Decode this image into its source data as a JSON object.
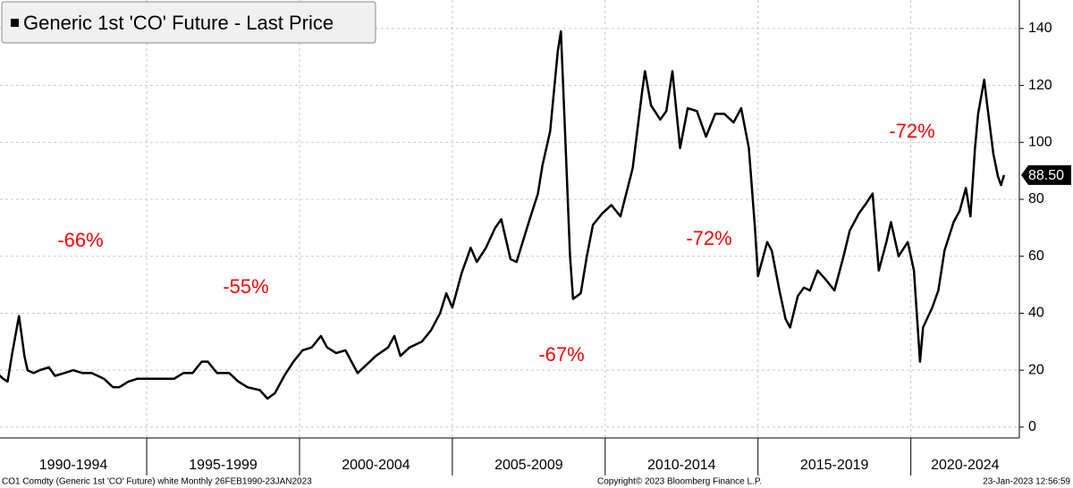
{
  "chart_data": {
    "type": "line",
    "title": "Generic 1st 'CO' Future - Last Price",
    "x": [
      1990.1,
      1990.3,
      1990.45,
      1990.6,
      1990.82,
      1990.9,
      1991.0,
      1991.1,
      1991.3,
      1991.5,
      1991.8,
      1992.0,
      1992.3,
      1992.6,
      1992.9,
      1993.2,
      1993.6,
      1993.9,
      1994.1,
      1994.4,
      1994.7,
      1995.0,
      1995.5,
      1995.9,
      1996.2,
      1996.5,
      1996.8,
      1997.0,
      1997.3,
      1997.7,
      1998.0,
      1998.3,
      1998.7,
      1998.95,
      1999.2,
      1999.5,
      1999.8,
      2000.1,
      2000.4,
      2000.7,
      2000.9,
      2001.2,
      2001.5,
      2001.9,
      2002.2,
      2002.5,
      2002.9,
      2003.1,
      2003.3,
      2003.6,
      2004.0,
      2004.3,
      2004.6,
      2004.8,
      2005.0,
      2005.3,
      2005.6,
      2005.8,
      2006.1,
      2006.4,
      2006.6,
      2006.9,
      2007.1,
      2007.5,
      2007.8,
      2007.95,
      2008.2,
      2008.45,
      2008.55,
      2008.7,
      2008.85,
      2008.95,
      2009.2,
      2009.4,
      2009.6,
      2009.9,
      2010.2,
      2010.5,
      2010.9,
      2011.2,
      2011.3,
      2011.5,
      2011.8,
      2012.0,
      2012.2,
      2012.45,
      2012.7,
      2013.0,
      2013.3,
      2013.6,
      2013.9,
      2014.2,
      2014.45,
      2014.7,
      2014.9,
      2015.0,
      2015.3,
      2015.45,
      2015.7,
      2015.9,
      2016.05,
      2016.3,
      2016.5,
      2016.7,
      2016.95,
      2017.2,
      2017.5,
      2017.8,
      2018.0,
      2018.3,
      2018.5,
      2018.75,
      2018.95,
      2019.2,
      2019.35,
      2019.6,
      2019.9,
      2020.1,
      2020.3,
      2020.4,
      2020.7,
      2020.9,
      2021.1,
      2021.4,
      2021.6,
      2021.8,
      2021.95,
      2022.1,
      2022.2,
      2022.4,
      2022.5,
      2022.7,
      2022.85,
      2022.95,
      2023.05
    ],
    "series": [
      {
        "name": "Generic 1st 'CO' Future - Last Price",
        "color": "#000000",
        "values": [
          19,
          17,
          16,
          26,
          39,
          33,
          25,
          20,
          19,
          20,
          21,
          18,
          19,
          20,
          19,
          19,
          17,
          14,
          14,
          16,
          17,
          17,
          17,
          17,
          19,
          19,
          23,
          23,
          19,
          19,
          16,
          14,
          13,
          10,
          12,
          18,
          23,
          27,
          28,
          32,
          28,
          26,
          27,
          19,
          22,
          25,
          28,
          32,
          25,
          28,
          30,
          34,
          40,
          47,
          42,
          54,
          63,
          58,
          63,
          70,
          73,
          59,
          58,
          72,
          82,
          92,
          104,
          132,
          139,
          100,
          60,
          45,
          47,
          60,
          71,
          75,
          78,
          74,
          91,
          117,
          125,
          113,
          108,
          111,
          125,
          98,
          112,
          111,
          102,
          110,
          110,
          107,
          112,
          98,
          70,
          53,
          65,
          62,
          48,
          38,
          35,
          46,
          49,
          48,
          55,
          52,
          48,
          60,
          69,
          75,
          78,
          82,
          55,
          65,
          72,
          60,
          65,
          55,
          23,
          35,
          42,
          48,
          62,
          72,
          76,
          84,
          74,
          98,
          110,
          122,
          113,
          96,
          88,
          85,
          88.5
        ]
      }
    ],
    "last_value_label": "88.50",
    "xlim": [
      1990.2,
      2023.55
    ],
    "ylim": [
      -6,
      150
    ],
    "yticks": [
      0,
      20,
      40,
      60,
      80,
      100,
      120,
      140
    ],
    "x_bands": [
      {
        "start": 1990,
        "end": 1995,
        "label": "1990-1994"
      },
      {
        "start": 1995,
        "end": 2000,
        "label": "1995-1999"
      },
      {
        "start": 2000,
        "end": 2005,
        "label": "2000-2004"
      },
      {
        "start": 2005,
        "end": 2010,
        "label": "2005-2009"
      },
      {
        "start": 2010,
        "end": 2015,
        "label": "2010-2014"
      },
      {
        "start": 2015,
        "end": 2020,
        "label": "2015-2019"
      },
      {
        "start": 2020,
        "end": 2025,
        "label": "2020-2024"
      }
    ],
    "annotations": [
      "-66%",
      "-55%",
      "-67%",
      "-72%",
      "-72%"
    ],
    "annotation_color": "#ff0000",
    "grid": true,
    "footer": {
      "left": "CO1 Comdty (Generic 1st 'CO' Future) white  Monthly 26FEB1990-23JAN2023",
      "center": "Copyright© 2023 Bloomberg Finance L.P.",
      "right": "23-Jan-2023 12:56:59"
    }
  }
}
